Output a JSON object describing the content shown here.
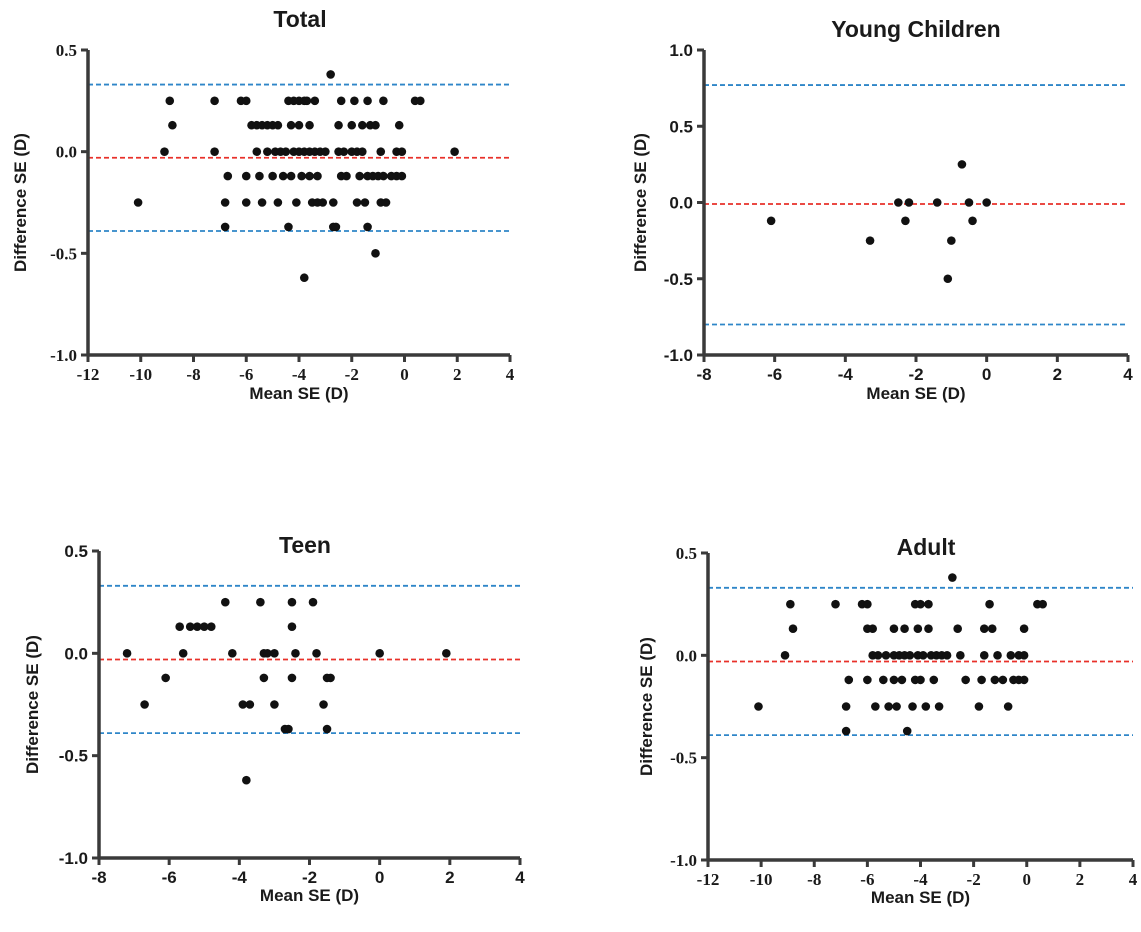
{
  "colors": {
    "mean_line": "#e8312a",
    "loa_line": "#2f86c8",
    "point": "#111111",
    "axis": "#3a3a3a"
  },
  "chart_data": [
    {
      "type": "scatter",
      "title": "Total",
      "xlabel": "Mean SE (D)",
      "ylabel": "Difference SE (D)",
      "xlim": [
        -12,
        4
      ],
      "ylim": [
        -1.0,
        0.5
      ],
      "xticks": [
        "-12",
        "-10",
        "-8",
        "-6",
        "-4",
        "-2",
        "0",
        "2",
        "4"
      ],
      "yticks": [
        "-1.0",
        "-0.5",
        "0.0",
        "0.5"
      ],
      "hlines": {
        "mean": -0.03,
        "upper_loa": 0.33,
        "lower_loa": -0.39
      },
      "points": [
        [
          -10.1,
          -0.25
        ],
        [
          -9.1,
          0.0
        ],
        [
          -8.9,
          0.25
        ],
        [
          -8.8,
          0.13
        ],
        [
          -7.2,
          0.25
        ],
        [
          -7.2,
          0.0
        ],
        [
          -6.8,
          -0.37
        ],
        [
          -6.8,
          -0.25
        ],
        [
          -6.7,
          -0.12
        ],
        [
          -6.2,
          0.25
        ],
        [
          -6.0,
          0.25
        ],
        [
          -6.0,
          -0.12
        ],
        [
          -6.0,
          -0.25
        ],
        [
          -5.8,
          0.13
        ],
        [
          -5.6,
          0.13
        ],
        [
          -5.6,
          0.0
        ],
        [
          -5.5,
          -0.12
        ],
        [
          -5.4,
          0.13
        ],
        [
          -5.4,
          -0.25
        ],
        [
          -5.2,
          0.13
        ],
        [
          -5.2,
          0.0
        ],
        [
          -5.0,
          0.13
        ],
        [
          -5.0,
          -0.12
        ],
        [
          -4.9,
          0.0
        ],
        [
          -4.8,
          0.13
        ],
        [
          -4.8,
          -0.25
        ],
        [
          -4.7,
          0.0
        ],
        [
          -4.6,
          -0.12
        ],
        [
          -4.5,
          0.0
        ],
        [
          -4.4,
          0.25
        ],
        [
          -4.4,
          -0.37
        ],
        [
          -4.3,
          0.13
        ],
        [
          -4.3,
          -0.12
        ],
        [
          -4.2,
          0.25
        ],
        [
          -4.2,
          0.0
        ],
        [
          -4.1,
          -0.25
        ],
        [
          -4.0,
          0.25
        ],
        [
          -4.0,
          0.13
        ],
        [
          -4.0,
          0.0
        ],
        [
          -3.9,
          -0.12
        ],
        [
          -3.8,
          0.25
        ],
        [
          -3.8,
          0.0
        ],
        [
          -3.8,
          -0.62
        ],
        [
          -3.7,
          0.25
        ],
        [
          -3.6,
          0.13
        ],
        [
          -3.6,
          0.0
        ],
        [
          -3.6,
          -0.12
        ],
        [
          -3.5,
          -0.25
        ],
        [
          -3.4,
          0.25
        ],
        [
          -3.4,
          0.0
        ],
        [
          -3.3,
          -0.12
        ],
        [
          -3.3,
          -0.25
        ],
        [
          -3.2,
          0.0
        ],
        [
          -3.1,
          -0.25
        ],
        [
          -3.0,
          0.0
        ],
        [
          -2.8,
          0.38
        ],
        [
          -2.7,
          -0.25
        ],
        [
          -2.7,
          -0.37
        ],
        [
          -2.6,
          -0.37
        ],
        [
          -2.5,
          0.13
        ],
        [
          -2.5,
          0.0
        ],
        [
          -2.4,
          0.25
        ],
        [
          -2.4,
          -0.12
        ],
        [
          -2.3,
          0.0
        ],
        [
          -2.2,
          -0.12
        ],
        [
          -2.0,
          0.13
        ],
        [
          -2.0,
          0.0
        ],
        [
          -1.9,
          0.25
        ],
        [
          -1.8,
          0.0
        ],
        [
          -1.8,
          -0.25
        ],
        [
          -1.7,
          -0.12
        ],
        [
          -1.6,
          0.13
        ],
        [
          -1.6,
          0.0
        ],
        [
          -1.5,
          -0.25
        ],
        [
          -1.4,
          0.25
        ],
        [
          -1.4,
          -0.12
        ],
        [
          -1.4,
          -0.37
        ],
        [
          -1.3,
          0.13
        ],
        [
          -1.2,
          -0.12
        ],
        [
          -1.1,
          0.13
        ],
        [
          -1.1,
          -0.5
        ],
        [
          -1.0,
          -0.12
        ],
        [
          -0.9,
          0.0
        ],
        [
          -0.9,
          -0.25
        ],
        [
          -0.8,
          0.25
        ],
        [
          -0.8,
          -0.12
        ],
        [
          -0.7,
          -0.25
        ],
        [
          -0.5,
          -0.12
        ],
        [
          -0.3,
          0.0
        ],
        [
          -0.3,
          -0.12
        ],
        [
          -0.2,
          0.13
        ],
        [
          -0.1,
          0.0
        ],
        [
          -0.1,
          -0.12
        ],
        [
          0.4,
          0.25
        ],
        [
          0.6,
          0.25
        ],
        [
          1.9,
          0.0
        ]
      ]
    },
    {
      "type": "scatter",
      "title": "Young Children",
      "xlabel": "Mean SE (D)",
      "ylabel": "Difference SE (D)",
      "xlim": [
        -8,
        4
      ],
      "ylim": [
        -1.0,
        1.0
      ],
      "xticks": [
        "-8",
        "-6",
        "-4",
        "-2",
        "0",
        "2",
        "4"
      ],
      "yticks": [
        "-1.0",
        "-0.5",
        "0.0",
        "0.5",
        "1.0"
      ],
      "hlines": {
        "mean": -0.01,
        "upper_loa": 0.77,
        "lower_loa": -0.8
      },
      "points": [
        [
          -6.1,
          -0.12
        ],
        [
          -3.3,
          -0.25
        ],
        [
          -2.5,
          0.0
        ],
        [
          -2.3,
          -0.12
        ],
        [
          -2.2,
          0.0
        ],
        [
          -1.4,
          0.0
        ],
        [
          -1.1,
          -0.5
        ],
        [
          -1.0,
          -0.25
        ],
        [
          -0.7,
          0.25
        ],
        [
          -0.5,
          0.0
        ],
        [
          -0.4,
          -0.12
        ],
        [
          0.0,
          0.0
        ]
      ]
    },
    {
      "type": "scatter",
      "title": "Teen",
      "xlabel": "Mean SE (D)",
      "ylabel": "Difference SE (D)",
      "xlim": [
        -8,
        4
      ],
      "ylim": [
        -1.0,
        0.5
      ],
      "xticks": [
        "-8",
        "-6",
        "-4",
        "-2",
        "0",
        "2",
        "4"
      ],
      "yticks": [
        "-1.0",
        "-0.5",
        "0.0",
        "0.5"
      ],
      "hlines": {
        "mean": -0.03,
        "upper_loa": 0.33,
        "lower_loa": -0.39
      },
      "points": [
        [
          -7.2,
          0.0
        ],
        [
          -6.7,
          -0.25
        ],
        [
          -6.1,
          -0.12
        ],
        [
          -5.7,
          0.13
        ],
        [
          -5.6,
          0.0
        ],
        [
          -5.4,
          0.13
        ],
        [
          -5.2,
          0.13
        ],
        [
          -5.0,
          0.13
        ],
        [
          -4.8,
          0.13
        ],
        [
          -4.4,
          0.25
        ],
        [
          -4.2,
          0.0
        ],
        [
          -3.9,
          -0.25
        ],
        [
          -3.8,
          -0.62
        ],
        [
          -3.7,
          -0.25
        ],
        [
          -3.4,
          0.25
        ],
        [
          -3.3,
          0.0
        ],
        [
          -3.3,
          -0.12
        ],
        [
          -3.2,
          0.0
        ],
        [
          -3.0,
          -0.25
        ],
        [
          -3.0,
          0.0
        ],
        [
          -2.7,
          -0.37
        ],
        [
          -2.6,
          -0.37
        ],
        [
          -2.5,
          0.25
        ],
        [
          -2.5,
          0.13
        ],
        [
          -2.5,
          -0.12
        ],
        [
          -2.4,
          0.0
        ],
        [
          -1.9,
          0.25
        ],
        [
          -1.8,
          0.0
        ],
        [
          -1.6,
          -0.25
        ],
        [
          -1.5,
          -0.12
        ],
        [
          -1.5,
          -0.37
        ],
        [
          -1.4,
          -0.12
        ],
        [
          0.0,
          0.0
        ],
        [
          1.9,
          0.0
        ]
      ]
    },
    {
      "type": "scatter",
      "title": "Adult",
      "xlabel": "Mean SE (D)",
      "ylabel": "Difference SE (D)",
      "xlim": [
        -12,
        4
      ],
      "ylim": [
        -1.0,
        0.5
      ],
      "xticks": [
        "-12",
        "-10",
        "-8",
        "-6",
        "-4",
        "-2",
        "0",
        "2",
        "4"
      ],
      "yticks": [
        "-1.0",
        "-0.5",
        "0.0",
        "0.5"
      ],
      "hlines": {
        "mean": -0.03,
        "upper_loa": 0.33,
        "lower_loa": -0.39
      },
      "points": [
        [
          -10.1,
          -0.25
        ],
        [
          -9.1,
          0.0
        ],
        [
          -8.9,
          0.25
        ],
        [
          -8.8,
          0.13
        ],
        [
          -7.2,
          0.25
        ],
        [
          -6.8,
          -0.37
        ],
        [
          -6.8,
          -0.25
        ],
        [
          -6.7,
          -0.12
        ],
        [
          -6.2,
          0.25
        ],
        [
          -6.0,
          0.25
        ],
        [
          -6.0,
          0.13
        ],
        [
          -6.0,
          -0.12
        ],
        [
          -5.8,
          0.13
        ],
        [
          -5.8,
          0.0
        ],
        [
          -5.7,
          -0.25
        ],
        [
          -5.6,
          0.0
        ],
        [
          -5.4,
          -0.12
        ],
        [
          -5.3,
          0.0
        ],
        [
          -5.2,
          -0.25
        ],
        [
          -5.0,
          0.13
        ],
        [
          -5.0,
          0.0
        ],
        [
          -5.0,
          -0.12
        ],
        [
          -4.9,
          -0.25
        ],
        [
          -4.8,
          0.0
        ],
        [
          -4.7,
          -0.12
        ],
        [
          -4.6,
          0.13
        ],
        [
          -4.6,
          0.0
        ],
        [
          -4.5,
          -0.37
        ],
        [
          -4.4,
          0.0
        ],
        [
          -4.3,
          -0.25
        ],
        [
          -4.2,
          0.25
        ],
        [
          -4.2,
          -0.12
        ],
        [
          -4.1,
          0.13
        ],
        [
          -4.1,
          0.0
        ],
        [
          -4.0,
          0.25
        ],
        [
          -4.0,
          -0.12
        ],
        [
          -3.9,
          0.0
        ],
        [
          -3.8,
          -0.25
        ],
        [
          -3.7,
          0.25
        ],
        [
          -3.7,
          0.13
        ],
        [
          -3.6,
          0.0
        ],
        [
          -3.5,
          -0.12
        ],
        [
          -3.4,
          0.0
        ],
        [
          -3.3,
          -0.25
        ],
        [
          -3.2,
          0.0
        ],
        [
          -3.0,
          0.0
        ],
        [
          -2.8,
          0.38
        ],
        [
          -2.6,
          0.13
        ],
        [
          -2.5,
          0.0
        ],
        [
          -2.3,
          -0.12
        ],
        [
          -1.8,
          -0.25
        ],
        [
          -1.7,
          -0.12
        ],
        [
          -1.6,
          0.13
        ],
        [
          -1.6,
          0.0
        ],
        [
          -1.4,
          0.25
        ],
        [
          -1.3,
          0.13
        ],
        [
          -1.2,
          -0.12
        ],
        [
          -1.1,
          0.0
        ],
        [
          -0.9,
          -0.12
        ],
        [
          -0.7,
          -0.25
        ],
        [
          -0.6,
          0.0
        ],
        [
          -0.5,
          -0.12
        ],
        [
          -0.3,
          0.0
        ],
        [
          -0.3,
          -0.12
        ],
        [
          -0.1,
          0.13
        ],
        [
          -0.1,
          0.0
        ],
        [
          -0.1,
          -0.12
        ],
        [
          0.4,
          0.25
        ],
        [
          0.6,
          0.25
        ]
      ]
    }
  ]
}
